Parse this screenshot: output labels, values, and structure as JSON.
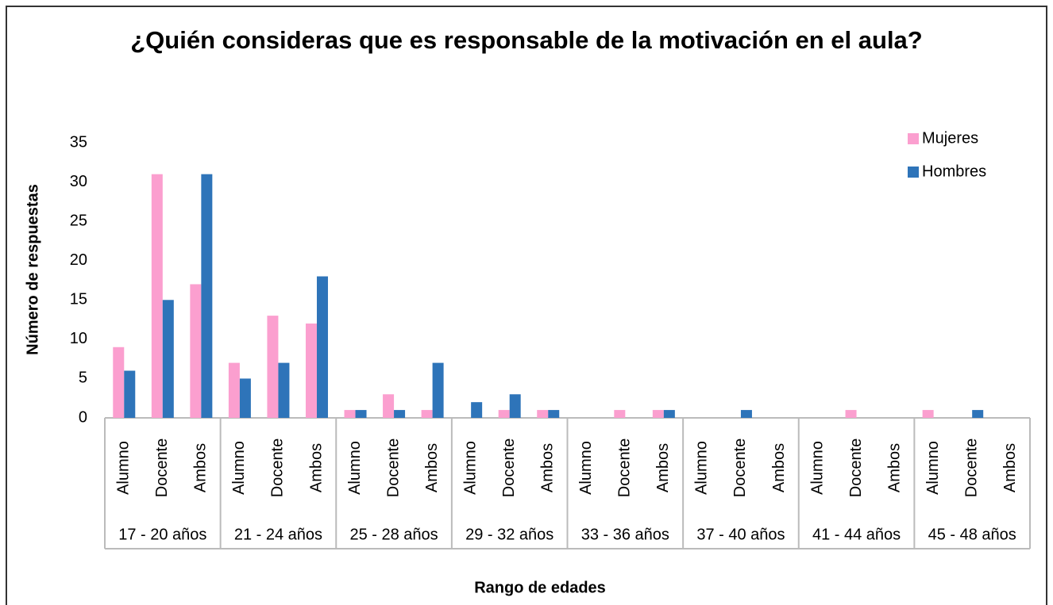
{
  "chart_data": {
    "type": "bar",
    "title": "¿Quién consideras que es responsable de la motivación en el aula?",
    "y_label": "Número de respuestas",
    "x_label": "Rango de edades",
    "categories": [
      "Alumno",
      "Docente",
      "Ambos",
      "Alumno",
      "Docente",
      "Ambos",
      "Alumno",
      "Docente",
      "Ambos",
      "Alumno",
      "Docente",
      "Ambos",
      "Alumno",
      "Docente",
      "Ambos",
      "Alumno",
      "Docente",
      "Ambos",
      "Alumno",
      "Docente",
      "Ambos",
      "Alumno",
      "Docente",
      "Ambos"
    ],
    "groups": [
      "17 - 20 años",
      "21 - 24 años",
      "25 - 28 años",
      "29 - 32 años",
      "33 - 36 años",
      "37 - 40 años",
      "41 - 44 años",
      "45 - 48 años"
    ],
    "series": [
      {
        "name": "Mujeres",
        "color": "#fb9fcf",
        "values": [
          9,
          31,
          17,
          7,
          13,
          12,
          1,
          3,
          1,
          0,
          1,
          1,
          0,
          1,
          1,
          0,
          0,
          0,
          0,
          1,
          0,
          1,
          0,
          0
        ]
      },
      {
        "name": "Hombres",
        "color": "#2e74b9",
        "values": [
          6,
          15,
          31,
          5,
          7,
          18,
          1,
          1,
          7,
          2,
          3,
          1,
          0,
          0,
          1,
          0,
          1,
          0,
          0,
          0,
          0,
          0,
          1,
          0
        ]
      }
    ],
    "ylim": [
      0,
      35
    ],
    "yticks": [
      0,
      5,
      10,
      15,
      20,
      25,
      30,
      35
    ],
    "grid": false,
    "legend": "top-right"
  }
}
